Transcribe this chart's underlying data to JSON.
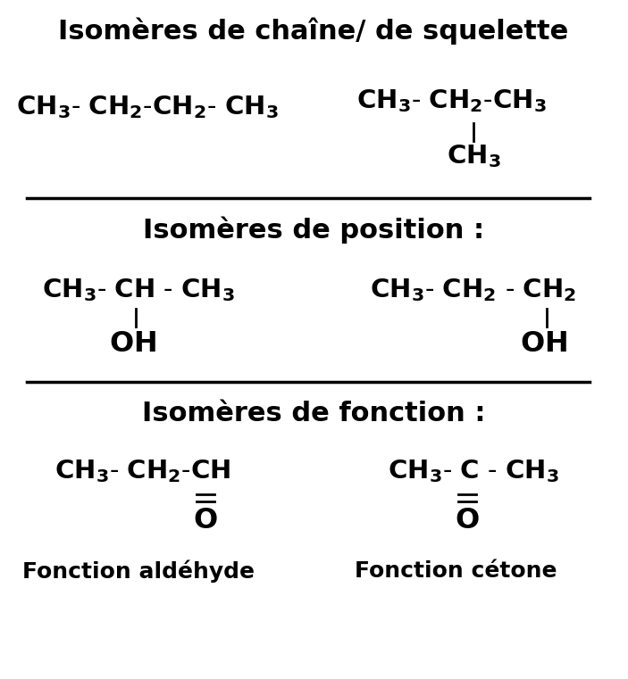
{
  "bg_color": "#ffffff",
  "figsize": [
    7.03,
    7.61
  ],
  "dpi": 100,
  "title": "Isomères de chaîne/ de squelette",
  "sec2_title": "Isomères de position :",
  "sec3_title": "Isomères de fonction :",
  "label_aldeyhde": "Fonction aldéhyde",
  "label_cetone": "Fonction cétone"
}
